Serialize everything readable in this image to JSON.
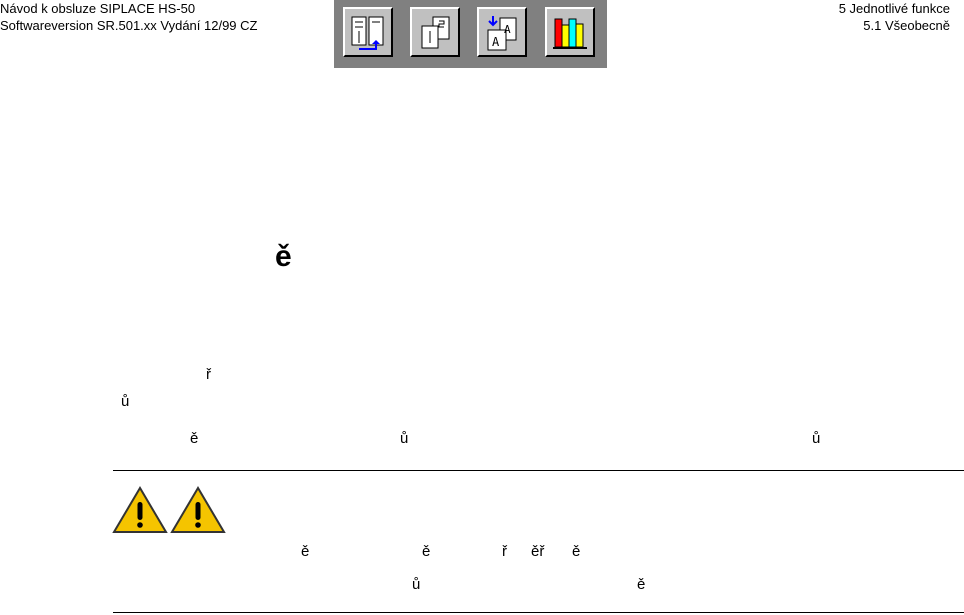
{
  "header": {
    "left_line1": "Návod k obsluze SIPLACE HS-50",
    "left_line2": "Softwareversion SR.501.xx    Vydání 12/99 CZ",
    "right_line1": "5 Jednotlivé funkce",
    "right_line2": "5.1 Všeobecně"
  },
  "toolbar": {
    "buttons": [
      "contents-icon",
      "pages-icon",
      "index-icon",
      "library-icon"
    ]
  },
  "body": {
    "heading_glyph": "ě",
    "line1": [
      "ř"
    ],
    "line2": [
      "ů"
    ],
    "line3": [
      "ě",
      "ů",
      "ů"
    ],
    "warning_line1": [
      "ě",
      "ě",
      "ř",
      "ěř",
      "ě"
    ],
    "warning_line2": [
      "ů",
      "ě"
    ]
  },
  "colors": {
    "warning_fill": "#f5c400",
    "toolbar_bg": "#808080",
    "button_bg": "#c0c0c0"
  }
}
